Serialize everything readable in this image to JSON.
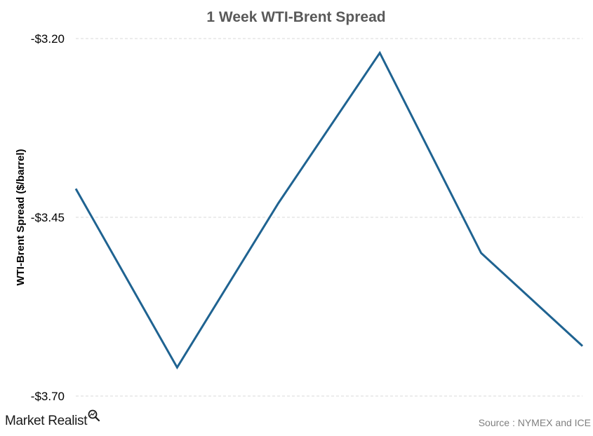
{
  "chart_data": {
    "type": "line",
    "title": "1 Week WTI-Brent Spread",
    "ylabel": "WTI-Brent Spread ($/barrel)",
    "xlabel": "",
    "ylim": [
      -3.7,
      -3.2
    ],
    "yticks": [
      -3.7,
      -3.45,
      -3.2
    ],
    "ytick_labels": [
      "-$3.70",
      "-$3.45",
      "-$3.20"
    ],
    "grid": true,
    "x": [
      1,
      2,
      3,
      4,
      5,
      6
    ],
    "series": [
      {
        "values": [
          -3.41,
          -3.66,
          -3.43,
          -3.22,
          -3.5,
          -3.63
        ],
        "color": "#1f6391"
      }
    ]
  },
  "logo": {
    "text": "Market Realist",
    "icon": "magnifier-chart-icon"
  },
  "source": {
    "text": "Source : NYMEX  and ICE"
  }
}
